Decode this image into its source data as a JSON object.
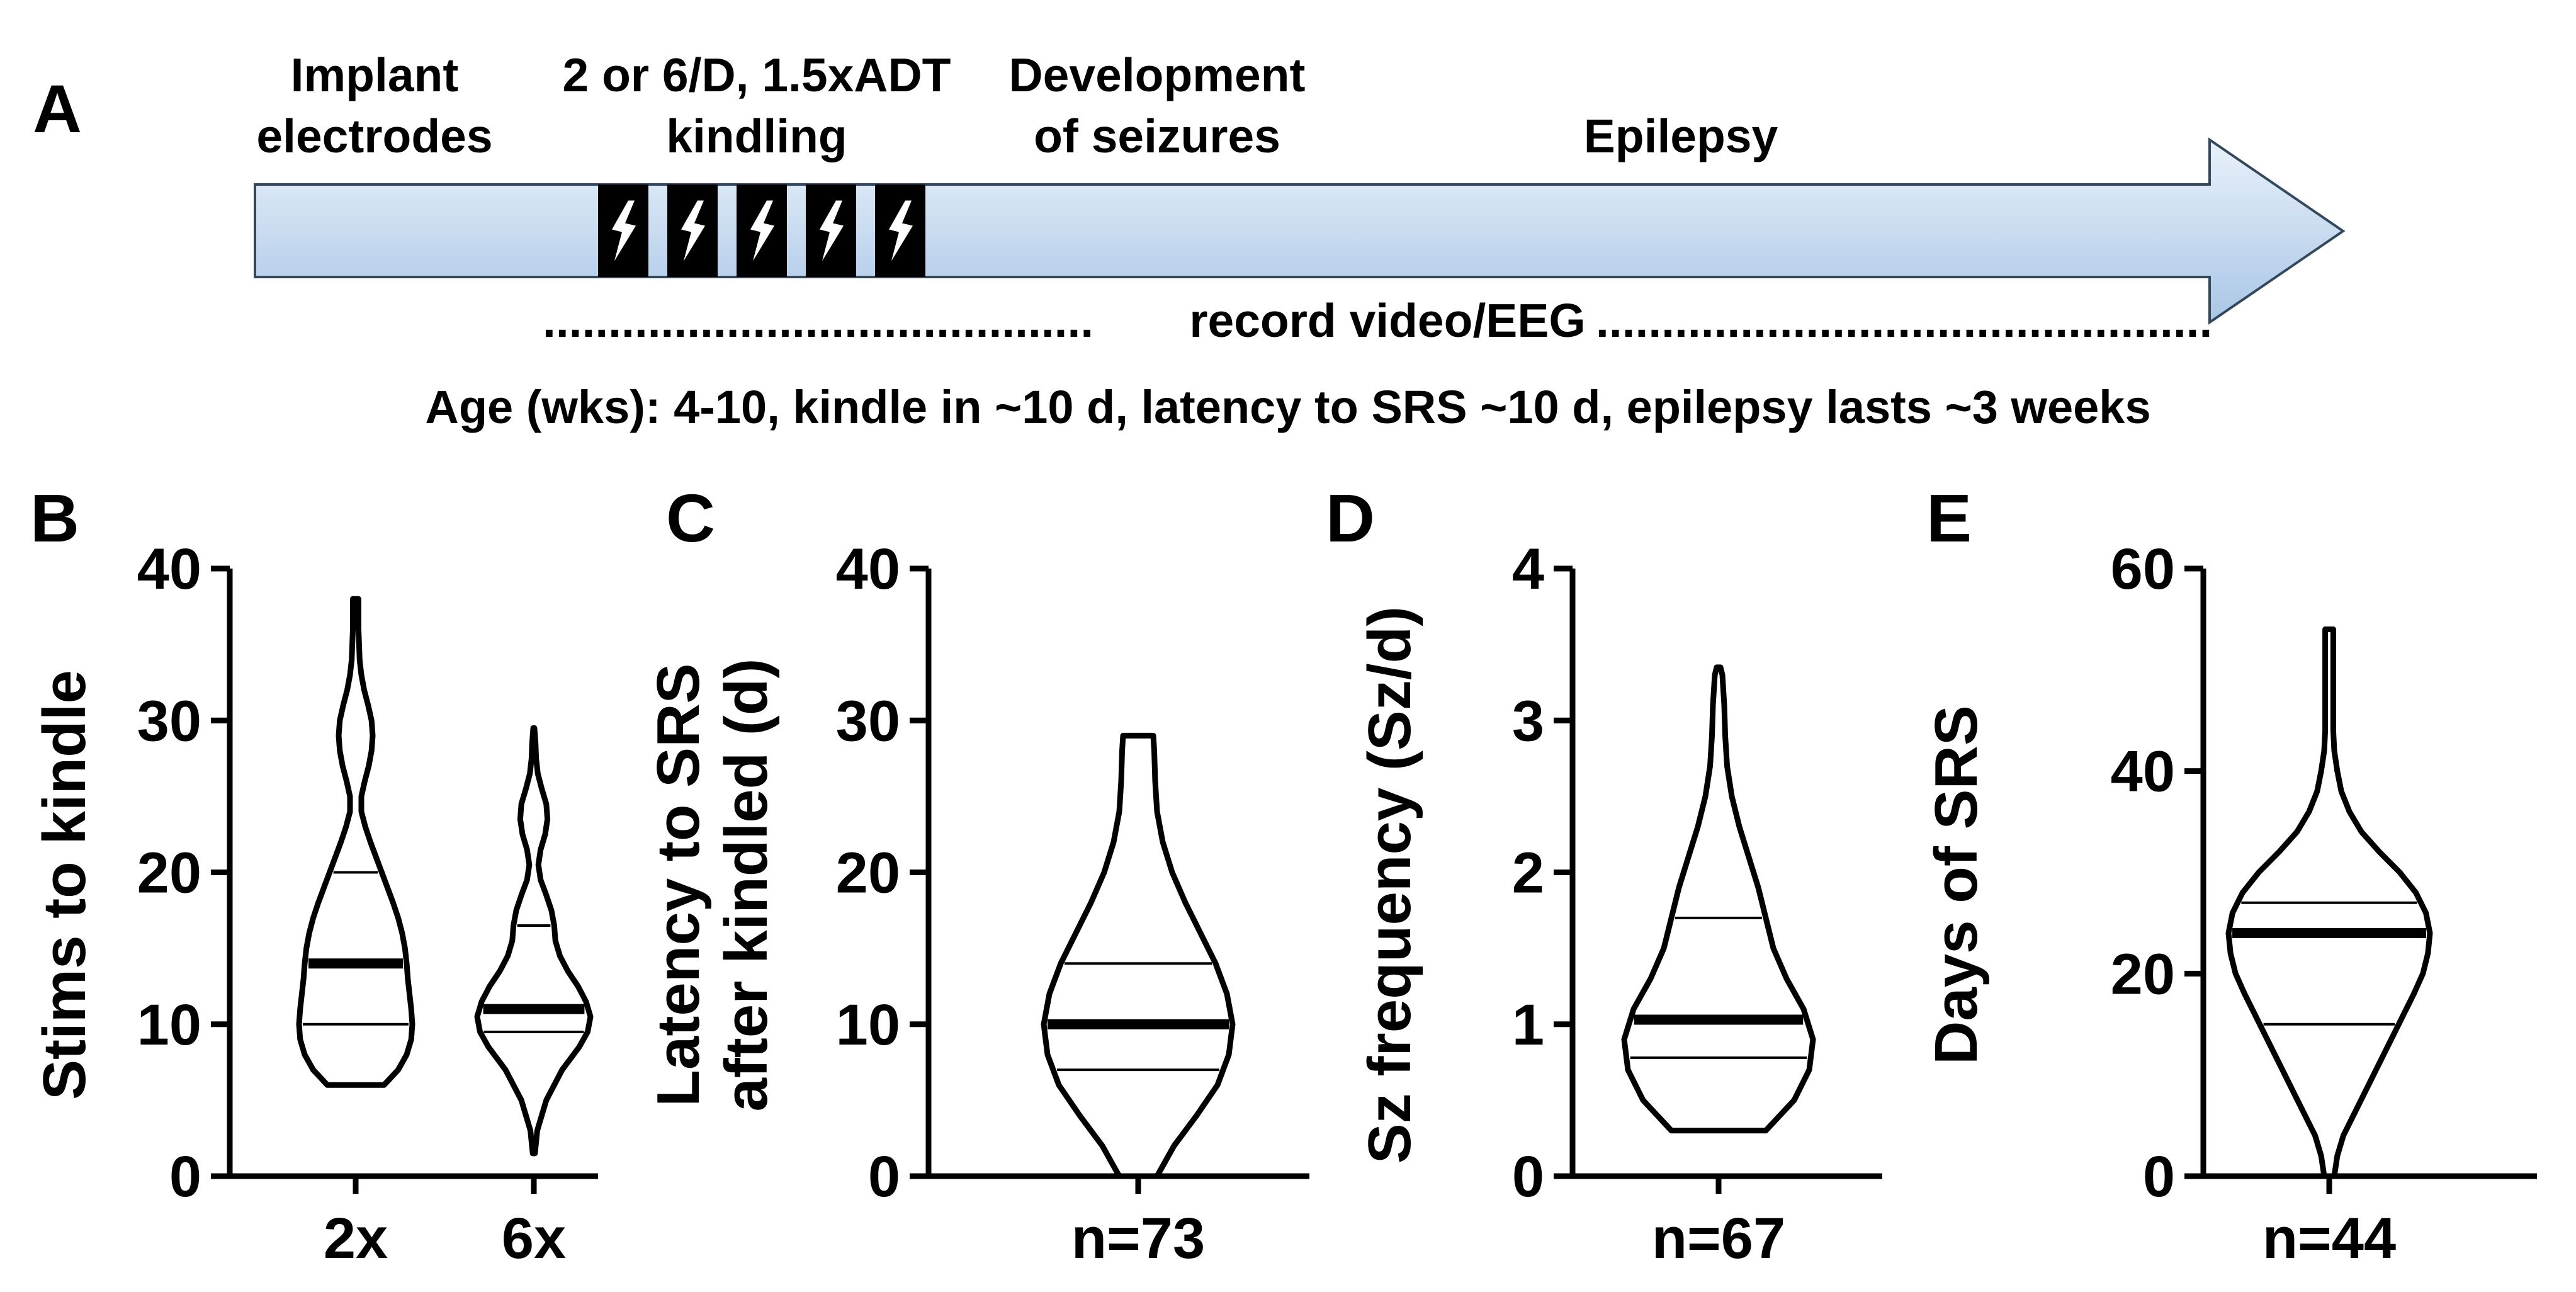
{
  "panel_a": {
    "letter": "A",
    "labels": {
      "implant": [
        "Implant",
        "electrodes"
      ],
      "kindling": [
        "2 or 6/D, 1.5xADT",
        "kindling"
      ],
      "development": [
        "Development",
        "of seizures"
      ],
      "epilepsy": "Epilepsy"
    },
    "stim_count": 5,
    "record_label": "record video/EEG",
    "age_line": "Age (wks): 4-10, kindle in ~10 d, latency to SRS ~10 d,   epilepsy lasts ~3 weeks",
    "arrow_color_light": "#e9f1fa",
    "arrow_color_dark": "#a9c6e6"
  },
  "chart_data": [
    {
      "type": "violin",
      "letter": "B",
      "ylabel": [
        "Stims to kindle"
      ],
      "ylim": [
        0,
        40
      ],
      "yticks": [
        0,
        10,
        20,
        30,
        40
      ],
      "categories": [
        "2x",
        "6x"
      ],
      "violins": [
        {
          "min": 6,
          "max": 38,
          "median": 14,
          "q1": 10,
          "q3": 20,
          "profile": [
            [
              6,
              0.5
            ],
            [
              7,
              0.75
            ],
            [
              8,
              0.9
            ],
            [
              9,
              0.98
            ],
            [
              10,
              1.0
            ],
            [
              11,
              0.98
            ],
            [
              12,
              0.95
            ],
            [
              13,
              0.92
            ],
            [
              14,
              0.9
            ],
            [
              15,
              0.87
            ],
            [
              16,
              0.82
            ],
            [
              17,
              0.75
            ],
            [
              18,
              0.66
            ],
            [
              19,
              0.56
            ],
            [
              20,
              0.46
            ],
            [
              21,
              0.36
            ],
            [
              22,
              0.26
            ],
            [
              23,
              0.17
            ],
            [
              24,
              0.1
            ],
            [
              25,
              0.1
            ],
            [
              26,
              0.16
            ],
            [
              27,
              0.23
            ],
            [
              28,
              0.28
            ],
            [
              29,
              0.3
            ],
            [
              30,
              0.28
            ],
            [
              31,
              0.22
            ],
            [
              32,
              0.15
            ],
            [
              33,
              0.1
            ],
            [
              34,
              0.07
            ],
            [
              35,
              0.06
            ],
            [
              36,
              0.05
            ],
            [
              37,
              0.05
            ],
            [
              38,
              0.05
            ]
          ]
        },
        {
          "min": 1.5,
          "max": 29.5,
          "median": 11,
          "q1": 9.5,
          "q3": 16.5,
          "profile": [
            [
              1.5,
              0.02
            ],
            [
              3,
              0.06
            ],
            [
              5,
              0.22
            ],
            [
              7,
              0.5
            ],
            [
              8.5,
              0.8
            ],
            [
              9.5,
              0.95
            ],
            [
              10.5,
              1.0
            ],
            [
              11.5,
              0.92
            ],
            [
              12.5,
              0.78
            ],
            [
              13.5,
              0.6
            ],
            [
              14.5,
              0.46
            ],
            [
              15.5,
              0.38
            ],
            [
              16.5,
              0.36
            ],
            [
              17.5,
              0.31
            ],
            [
              18.5,
              0.22
            ],
            [
              19.5,
              0.12
            ],
            [
              20.5,
              0.08
            ],
            [
              21.5,
              0.12
            ],
            [
              22.5,
              0.2
            ],
            [
              23.5,
              0.24
            ],
            [
              24.5,
              0.22
            ],
            [
              25.5,
              0.14
            ],
            [
              26.5,
              0.07
            ],
            [
              27.5,
              0.04
            ],
            [
              28.5,
              0.03
            ],
            [
              29.5,
              0.01
            ]
          ]
        }
      ]
    },
    {
      "type": "violin",
      "letter": "C",
      "ylabel": [
        "Latency to SRS",
        "after kindled (d)"
      ],
      "ylim": [
        0,
        40
      ],
      "yticks": [
        0,
        10,
        20,
        30,
        40
      ],
      "categories": [
        "n=73"
      ],
      "violins": [
        {
          "min": 0,
          "max": 29,
          "median": 10,
          "q1": 7,
          "q3": 14,
          "profile": [
            [
              0,
              0.2
            ],
            [
              2,
              0.38
            ],
            [
              4,
              0.62
            ],
            [
              6,
              0.84
            ],
            [
              8,
              0.96
            ],
            [
              10,
              1.0
            ],
            [
              12,
              0.94
            ],
            [
              14,
              0.82
            ],
            [
              16,
              0.66
            ],
            [
              18,
              0.5
            ],
            [
              20,
              0.36
            ],
            [
              22,
              0.26
            ],
            [
              24,
              0.2
            ],
            [
              26,
              0.18
            ],
            [
              28,
              0.17
            ],
            [
              29,
              0.16
            ]
          ]
        }
      ]
    },
    {
      "type": "violin",
      "letter": "D",
      "ylabel": [
        "Sz frequency (Sz/d)"
      ],
      "ylim": [
        0,
        4
      ],
      "yticks": [
        0,
        1,
        2,
        3,
        4
      ],
      "categories": [
        "n=67"
      ],
      "violins": [
        {
          "min": 0.3,
          "max": 3.35,
          "median": 1.03,
          "q1": 0.78,
          "q3": 1.7,
          "profile": [
            [
              0.3,
              0.5
            ],
            [
              0.5,
              0.8
            ],
            [
              0.7,
              0.96
            ],
            [
              0.9,
              1.0
            ],
            [
              1.1,
              0.9
            ],
            [
              1.3,
              0.72
            ],
            [
              1.5,
              0.58
            ],
            [
              1.7,
              0.5
            ],
            [
              1.9,
              0.42
            ],
            [
              2.1,
              0.32
            ],
            [
              2.3,
              0.22
            ],
            [
              2.5,
              0.14
            ],
            [
              2.7,
              0.09
            ],
            [
              2.9,
              0.07
            ],
            [
              3.1,
              0.06
            ],
            [
              3.3,
              0.04
            ],
            [
              3.35,
              0.02
            ]
          ]
        }
      ]
    },
    {
      "type": "violin",
      "letter": "E",
      "ylabel": [
        "Days of SRS"
      ],
      "ylim": [
        0,
        60
      ],
      "yticks": [
        0,
        20,
        40,
        60
      ],
      "categories": [
        "n=44"
      ],
      "violins": [
        {
          "min": 0,
          "max": 54,
          "median": 24,
          "q1": 15,
          "q3": 27,
          "profile": [
            [
              0,
              0.05
            ],
            [
              2,
              0.08
            ],
            [
              4,
              0.14
            ],
            [
              6,
              0.24
            ],
            [
              8,
              0.34
            ],
            [
              10,
              0.44
            ],
            [
              12,
              0.54
            ],
            [
              14,
              0.64
            ],
            [
              16,
              0.74
            ],
            [
              18,
              0.84
            ],
            [
              20,
              0.93
            ],
            [
              22,
              0.98
            ],
            [
              24,
              1.0
            ],
            [
              26,
              0.96
            ],
            [
              28,
              0.86
            ],
            [
              30,
              0.7
            ],
            [
              32,
              0.5
            ],
            [
              34,
              0.32
            ],
            [
              36,
              0.2
            ],
            [
              38,
              0.12
            ],
            [
              40,
              0.08
            ],
            [
              42,
              0.05
            ],
            [
              44,
              0.04
            ],
            [
              46,
              0.04
            ],
            [
              48,
              0.04
            ],
            [
              50,
              0.04
            ],
            [
              52,
              0.04
            ],
            [
              54,
              0.04
            ]
          ]
        }
      ]
    }
  ]
}
